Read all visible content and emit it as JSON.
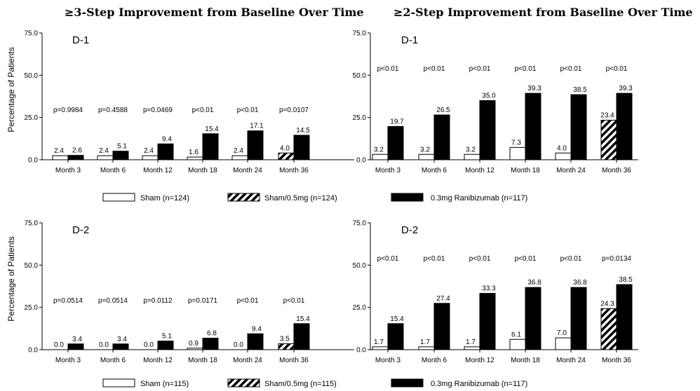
{
  "figure": {
    "title_left": "≥3-Step Improvement from Baseline Over Time",
    "title_right": "≥2-Step Improvement from Baseline Over Time",
    "ylabel": "Percentage of Patients"
  },
  "colors": {
    "sham": "#ffffff",
    "sham05": "hatch",
    "ranibizumab": "#000000",
    "outline": "#000000"
  },
  "legends": [
    {
      "items": [
        "Sham (n=124)",
        "Sham/0.5mg (n=124)",
        "0.3mg Ranibizumab (n=117)"
      ]
    },
    {
      "items": [
        "Sham (n=115)",
        "Sham/0.5mg (n=115)",
        "0.3mg Ranibizumab (n=117)"
      ]
    }
  ],
  "chart_data": [
    {
      "type": "bar",
      "panel": "D-1",
      "title": "≥3-Step Improvement from Baseline Over Time",
      "ylabel": "Percentage of Patients",
      "ylim": [
        0,
        75
      ],
      "yticks": [
        "0.0",
        "25.0",
        "50.0",
        "75.0"
      ],
      "categories": [
        "Month 3",
        "Month 6",
        "Month 12",
        "Month 18",
        "Month 24",
        "Month 36"
      ],
      "series": [
        {
          "name": "Sham (n=124)",
          "values": [
            2.4,
            2.4,
            2.4,
            1.6,
            2.4,
            null
          ],
          "labels": [
            "2.4",
            "2.4",
            "2.4",
            "1.6",
            "2.4",
            ""
          ]
        },
        {
          "name": "Sham/0.5mg (n=124)",
          "values": [
            null,
            null,
            null,
            null,
            null,
            4.0
          ],
          "labels": [
            "",
            "",
            "",
            "",
            "",
            "4.0"
          ]
        },
        {
          "name": "0.3mg Ranibizumab (n=117)",
          "values": [
            2.6,
            5.1,
            9.4,
            15.4,
            17.1,
            14.5
          ],
          "labels": [
            "2.6",
            "5.1",
            "9.4",
            "15.4",
            "17.1",
            "14.5"
          ]
        }
      ],
      "pvalues": [
        "p=0.9984",
        "p=0.4588",
        "p=0.0469",
        "p<0.01",
        "p<0.01",
        "p=0.0107"
      ]
    },
    {
      "type": "bar",
      "panel": "D-1",
      "title": "≥2-Step Improvement from Baseline Over Time",
      "ylim": [
        0,
        75
      ],
      "yticks": [
        "0.0",
        "25.0",
        "50.0",
        "75.0"
      ],
      "categories": [
        "Month 3",
        "Month 6",
        "Month 12",
        "Month 18",
        "Month 24",
        "Month 36"
      ],
      "series": [
        {
          "name": "Sham (n=124)",
          "values": [
            3.2,
            3.2,
            3.2,
            7.3,
            4.0,
            null
          ],
          "labels": [
            "3.2",
            "3.2",
            "3.2",
            "7.3",
            "4.0",
            ""
          ]
        },
        {
          "name": "Sham/0.5mg (n=124)",
          "values": [
            null,
            null,
            null,
            null,
            null,
            23.4
          ],
          "labels": [
            "",
            "",
            "",
            "",
            "",
            "23.4"
          ]
        },
        {
          "name": "0.3mg Ranibizumab (n=117)",
          "values": [
            19.7,
            26.5,
            35.0,
            39.3,
            38.5,
            39.3
          ],
          "labels": [
            "19.7",
            "26.5",
            "35.0",
            "39.3",
            "38.5",
            "39.3"
          ]
        }
      ],
      "pvalues": [
        "p<0.01",
        "p<0.01",
        "p<0.01",
        "p<0.01",
        "p<0.01",
        "p<0.01"
      ]
    },
    {
      "type": "bar",
      "panel": "D-2",
      "title": "≥3-Step Improvement from Baseline Over Time",
      "ylabel": "Percentage of Patients",
      "ylim": [
        0,
        75
      ],
      "yticks": [
        "0.0",
        "25.0",
        "50.0",
        "75.0"
      ],
      "categories": [
        "Month 3",
        "Month 6",
        "Month 12",
        "Month 18",
        "Month 24",
        "Month 36"
      ],
      "series": [
        {
          "name": "Sham (n=115)",
          "values": [
            0.0,
            0.0,
            0.0,
            0.9,
            0.0,
            null
          ],
          "labels": [
            "0.0",
            "0.0",
            "0.0",
            "0.9",
            "0.0",
            ""
          ]
        },
        {
          "name": "Sham/0.5mg (n=115)",
          "values": [
            null,
            null,
            null,
            null,
            null,
            3.5
          ],
          "labels": [
            "",
            "",
            "",
            "",
            "",
            "3.5"
          ]
        },
        {
          "name": "0.3mg Ranibizumab (n=117)",
          "values": [
            3.4,
            3.4,
            5.1,
            6.8,
            9.4,
            15.4
          ],
          "labels": [
            "3.4",
            "3.4",
            "5.1",
            "6.8",
            "9.4",
            "15.4"
          ]
        }
      ],
      "pvalues": [
        "p=0.0514",
        "p=0.0514",
        "p=0.0112",
        "p=0.0171",
        "p<0.01",
        "p<0.01"
      ]
    },
    {
      "type": "bar",
      "panel": "D-2",
      "title": "≥2-Step Improvement from Baseline Over Time",
      "ylim": [
        0,
        75
      ],
      "yticks": [
        "0.0",
        "25.0",
        "50.0",
        "75.0"
      ],
      "categories": [
        "Month 3",
        "Month 6",
        "Month 12",
        "Month 18",
        "Month 24",
        "Month 36"
      ],
      "series": [
        {
          "name": "Sham (n=115)",
          "values": [
            1.7,
            1.7,
            1.7,
            6.1,
            7.0,
            null
          ],
          "labels": [
            "1.7",
            "1.7",
            "1.7",
            "6.1",
            "7.0",
            ""
          ]
        },
        {
          "name": "Sham/0.5mg (n=115)",
          "values": [
            null,
            null,
            null,
            null,
            null,
            24.3
          ],
          "labels": [
            "",
            "",
            "",
            "",
            "",
            "24.3"
          ]
        },
        {
          "name": "0.3mg Ranibizumab (n=117)",
          "values": [
            15.4,
            27.4,
            33.3,
            36.8,
            36.8,
            38.5
          ],
          "labels": [
            "15.4",
            "27.4",
            "33.3",
            "36.8",
            "36.8",
            "38.5"
          ]
        }
      ],
      "pvalues": [
        "p<0.01",
        "p<0.01",
        "p<0.01",
        "p<0.01",
        "p<0.01",
        "p=0.0134"
      ]
    }
  ]
}
